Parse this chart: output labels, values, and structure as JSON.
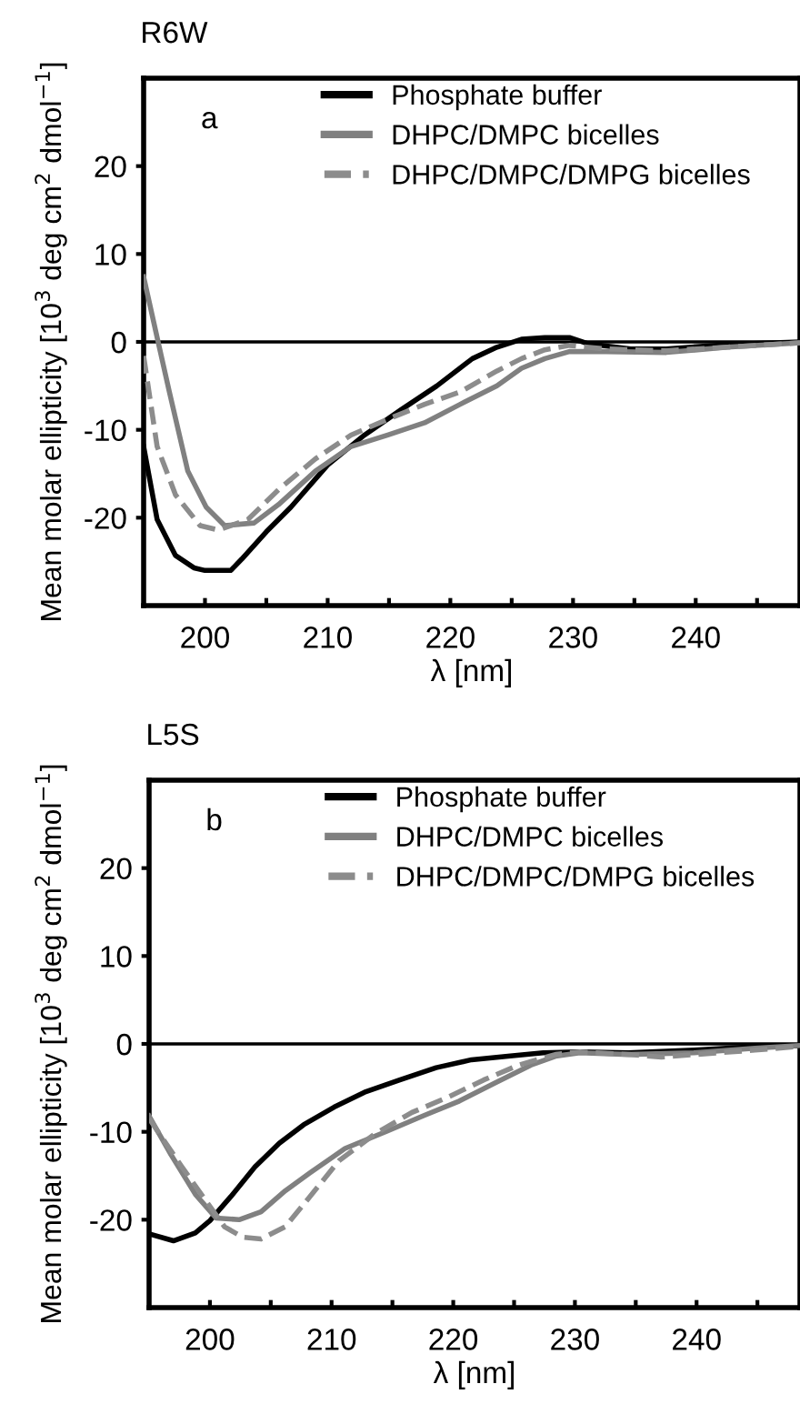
{
  "chart_data": [
    {
      "type": "line",
      "title": "R6W",
      "xlabel": "λ [nm]",
      "ylabel": "Mean molar ellipticity [10$^{3}$ deg cm$^{2}$ dmol$^{−1}$]",
      "annotations": [
        "a"
      ],
      "xlim": [
        195,
        248.5
      ],
      "ylim": [
        -30,
        30
      ],
      "xticks": [
        200,
        {
          "value": 205,
          "label": null
        },
        210,
        {
          "value": 215,
          "label": null
        },
        220,
        {
          "value": 225,
          "label": null
        },
        230,
        {
          "value": 235,
          "label": null
        },
        240,
        {
          "value": 245,
          "label": null
        }
      ],
      "yticks": [
        -20,
        -10,
        0,
        10,
        20
      ],
      "ref_lines": [
        {
          "axis": "y",
          "value": 0,
          "color": "#000000"
        }
      ],
      "grid": false,
      "legend": "top",
      "marker": "none",
      "series": [
        {
          "name": "Phosphate buffer",
          "color": "#000000",
          "line_style": "solid",
          "x": [
            195,
            196.1,
            197.6,
            199.1,
            200,
            202.1,
            203,
            205,
            207,
            210,
            213,
            215.9,
            218.9,
            221.8,
            223.8,
            225.8,
            227.7,
            229.7,
            231.2,
            234.7,
            237.6,
            242.6,
            248.5
          ],
          "values": [
            -11.9,
            -20.2,
            -24.3,
            -25.7,
            -26,
            -26,
            -24.7,
            -21.6,
            -18.8,
            -14,
            -10.6,
            -7.8,
            -5,
            -1.9,
            -0.6,
            0.3,
            0.5,
            0.5,
            -0.2,
            -0.8,
            -0.8,
            -0.3,
            0
          ]
        },
        {
          "name": "DHPC/DMPC bicelles",
          "color": "#808080",
          "line_style": "solid",
          "x": [
            195,
            196.1,
            197.1,
            198.6,
            200.1,
            201.6,
            204,
            206,
            209,
            211.9,
            214.9,
            217.9,
            220.8,
            223.8,
            225.8,
            227.7,
            229.7,
            232.7,
            237.6,
            242.6,
            248.5
          ],
          "values": [
            7.4,
            0.5,
            -5.7,
            -14.7,
            -18.8,
            -20.9,
            -20.6,
            -18.5,
            -14.7,
            -11.9,
            -10.6,
            -9.2,
            -7.1,
            -5,
            -3,
            -1.9,
            -1.1,
            -1.1,
            -1.2,
            -0.6,
            -0.1
          ]
        },
        {
          "name": "DHPC/DMPC/DMPG bicelles",
          "color": "#8c8c8c",
          "line_style": "dashed",
          "x": [
            195,
            196.1,
            197.6,
            199.6,
            201.1,
            203.5,
            206,
            209,
            211.9,
            214.9,
            217.9,
            220.8,
            223.8,
            225.8,
            227.7,
            229.7,
            232.7,
            237.6,
            242.6,
            248.5
          ],
          "values": [
            -1.6,
            -11.9,
            -17.4,
            -20.9,
            -21.4,
            -20.2,
            -16.8,
            -13.3,
            -10.6,
            -8.8,
            -7.1,
            -5.7,
            -3.3,
            -1.9,
            -0.9,
            -0.4,
            -0.8,
            -1,
            -0.6,
            -0.1
          ]
        }
      ]
    },
    {
      "type": "line",
      "title": "L5S",
      "xlabel": "λ [nm]",
      "ylabel": "Mean molar ellipticity [10$^{3}$ deg cm$^{2}$ dmol$^{−1}$]",
      "annotations": [
        "b"
      ],
      "xlim": [
        195,
        248.5
      ],
      "ylim": [
        -30,
        30
      ],
      "xticks": [
        200,
        {
          "value": 205,
          "label": null
        },
        210,
        {
          "value": 215,
          "label": null
        },
        220,
        {
          "value": 225,
          "label": null
        },
        230,
        {
          "value": 235,
          "label": null
        },
        240,
        {
          "value": 245,
          "label": null
        }
      ],
      "yticks": [
        -20,
        -10,
        0,
        10,
        20
      ],
      "ref_lines": [
        {
          "axis": "y",
          "value": 0,
          "color": "#000000"
        }
      ],
      "grid": false,
      "legend": "top",
      "marker": "none",
      "series": [
        {
          "name": "Phosphate buffer",
          "color": "#000000",
          "line_style": "solid",
          "x": [
            195,
            197,
            198.8,
            200,
            201.7,
            203.7,
            205.7,
            207.7,
            210.2,
            212.7,
            215.6,
            218.6,
            221.5,
            224.5,
            227.4,
            230.4,
            234.4,
            239.8,
            244.8,
            248.3
          ],
          "values": [
            -21.6,
            -22.4,
            -21.5,
            -20.1,
            -17.4,
            -14,
            -11.3,
            -9.2,
            -7.2,
            -5.5,
            -4.1,
            -2.7,
            -1.8,
            -1.4,
            -1,
            -0.9,
            -1,
            -0.7,
            -0.3,
            -0.2
          ]
        },
        {
          "name": "DHPC/DMPC bicelles",
          "color": "#808080",
          "line_style": "solid",
          "x": [
            195,
            196.8,
            198.8,
            200.5,
            202.4,
            204.2,
            206.2,
            208.2,
            211.1,
            214.6,
            217.5,
            220.5,
            223.5,
            226.4,
            228.4,
            230.4,
            234.4,
            239.8,
            244.8,
            248.3
          ],
          "values": [
            -8.2,
            -12.6,
            -17.1,
            -19.8,
            -20,
            -19.1,
            -16.7,
            -14.7,
            -11.9,
            -9.9,
            -8.2,
            -6.5,
            -4.4,
            -2.4,
            -1.4,
            -1,
            -1.2,
            -1,
            -0.5,
            -0.2
          ]
        },
        {
          "name": "DHPC/DMPC/DMPG bicelles",
          "color": "#8c8c8c",
          "line_style": "dashed",
          "x": [
            195,
            197.7,
            199.8,
            201.2,
            202.7,
            204.2,
            206.2,
            208.2,
            210.6,
            213.6,
            216.6,
            219.5,
            222.5,
            225.4,
            228.4,
            230.4,
            234.4,
            237.1,
            244.8,
            248.3
          ],
          "values": [
            -8.5,
            -14,
            -18.1,
            -20.8,
            -22,
            -22.2,
            -20.8,
            -17.4,
            -13.3,
            -10.2,
            -7.8,
            -6.1,
            -4.1,
            -2.4,
            -1.2,
            -0.9,
            -1.2,
            -1.5,
            -0.7,
            -0.3
          ]
        }
      ]
    }
  ]
}
